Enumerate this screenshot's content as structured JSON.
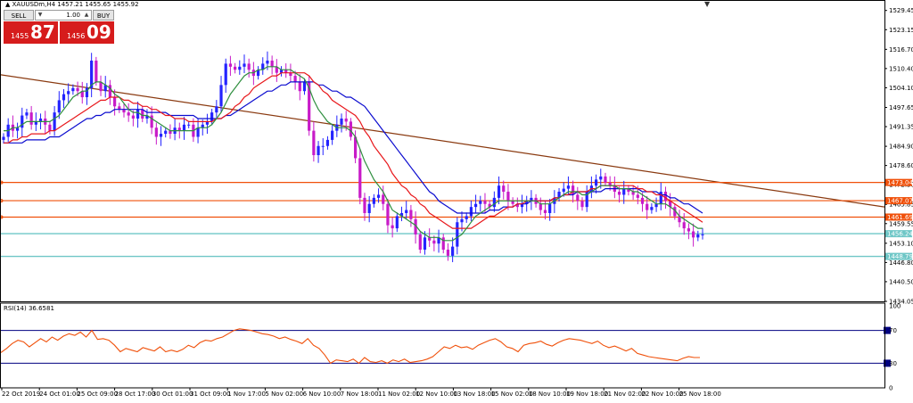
{
  "chart_title": "▲ XAUUSDm,H4  1457.21 1455.65 1455.92",
  "trade_panel": {
    "sell_label": "SELL",
    "buy_label": "BUY",
    "lot": "1.00",
    "sell_price_prefix": "1455",
    "sell_price_big": "87",
    "buy_price_prefix": "1456",
    "buy_price_big": "09",
    "down_arrow": "▼",
    "up_arrow": "▲"
  },
  "colors": {
    "bull": "#2323ff",
    "bear": "#c81bc8",
    "ma_fast": "#2f8f3f",
    "ma_mid": "#e8171b",
    "ma_slow": "#0c0ccf",
    "trend": "#8a3a10",
    "level": "#f0500a",
    "bid": "#6fc7c7",
    "rsi": "#f0500a",
    "rsi_level": "#000080"
  },
  "chart_data": [
    {
      "type": "candlestick",
      "y_ticks": [
        "1529.45",
        "1523.15",
        "1516.70",
        "1510.40",
        "1504.10",
        "1497.65",
        "1491.35",
        "1484.90",
        "1478.60",
        "1472.30",
        "1465.85",
        "1459.55",
        "1453.10",
        "1446.80",
        "1440.50",
        "1434.05"
      ],
      "ylim": [
        1434.05,
        1532.0
      ],
      "x_labels": [
        "22 Oct 2019",
        "24 Oct 01:00",
        "25 Oct 09:00",
        "28 Oct 17:00",
        "30 Oct 01:00",
        "31 Oct 09:00",
        "1 Nov 17:00",
        "5 Nov 02:00",
        "6 Nov 10:00",
        "7 Nov 18:00",
        "11 Nov 02:00",
        "12 Nov 10:00",
        "13 Nov 18:00",
        "15 Nov 02:00",
        "18 Nov 10:00",
        "19 Nov 18:00",
        "21 Nov 02:00",
        "22 Nov 10:00",
        "25 Nov 18:00"
      ],
      "price_levels": [
        {
          "label": "1473.04",
          "value": 1473.04,
          "kind": "level"
        },
        {
          "label": "1467.07",
          "value": 1467.07,
          "kind": "level"
        },
        {
          "label": "1461.69",
          "value": 1461.69,
          "kind": "level"
        },
        {
          "label": "1456.24",
          "value": 1456.24,
          "kind": "bid"
        },
        {
          "label": "1448.79",
          "value": 1448.79,
          "kind": "bid"
        }
      ],
      "trendline": {
        "start": 1508.4,
        "end": 1465.0
      },
      "closes": [
        1488,
        1492,
        1490,
        1491,
        1495,
        1496,
        1492,
        1493,
        1494,
        1492,
        1490,
        1496,
        1500,
        1502,
        1503,
        1504,
        1503,
        1501,
        1504,
        1513,
        1506,
        1503,
        1505,
        1501,
        1498,
        1497,
        1496,
        1495,
        1494,
        1497,
        1494,
        1495,
        1491,
        1488,
        1489,
        1490,
        1489,
        1491,
        1490,
        1492,
        1492,
        1488,
        1491,
        1492,
        1493,
        1496,
        1498,
        1505,
        1512,
        1511,
        1510,
        1511,
        1512,
        1510,
        1508,
        1510,
        1512,
        1513,
        1511,
        1509,
        1510,
        1509,
        1508,
        1506,
        1503,
        1506,
        1490,
        1482,
        1485,
        1485,
        1487,
        1490,
        1492,
        1494,
        1493,
        1488,
        1481,
        1468,
        1463,
        1466,
        1468,
        1469,
        1466,
        1459,
        1458,
        1462,
        1463,
        1464,
        1461,
        1456,
        1451,
        1455,
        1454,
        1453,
        1455,
        1451,
        1449,
        1452,
        1460,
        1461,
        1462,
        1465,
        1466,
        1467,
        1466,
        1465,
        1468,
        1472,
        1470,
        1467,
        1466,
        1465,
        1466,
        1467,
        1468,
        1466,
        1464,
        1463,
        1466,
        1468,
        1470,
        1471,
        1472,
        1469,
        1467,
        1465,
        1470,
        1472,
        1474,
        1475,
        1473,
        1472,
        1470,
        1469,
        1471,
        1470,
        1469,
        1468,
        1466,
        1464,
        1465,
        1466,
        1470,
        1467,
        1465,
        1462,
        1460,
        1458,
        1457,
        1455,
        1456,
        1456
      ],
      "ma_fast": [
        1490,
        1490,
        1491,
        1491,
        1492,
        1493,
        1493,
        1493,
        1493,
        1493,
        1493,
        1494,
        1495,
        1497,
        1499,
        1501,
        1502,
        1503,
        1503,
        1505,
        1506,
        1506,
        1505,
        1504,
        1502,
        1501,
        1499,
        1497,
        1496,
        1496,
        1495,
        1495,
        1494,
        1493,
        1492,
        1491,
        1490,
        1490,
        1490,
        1490,
        1490,
        1490,
        1491,
        1491,
        1491,
        1492,
        1494,
        1496,
        1499,
        1502,
        1504,
        1506,
        1508,
        1509,
        1509,
        1510,
        1510,
        1511,
        1511,
        1511,
        1510,
        1510,
        1510,
        1509,
        1508,
        1507,
        1504,
        1500,
        1497,
        1495,
        1493,
        1492,
        1491,
        1491,
        1491,
        1490,
        1488,
        1484,
        1480,
        1477,
        1474,
        1472,
        1470,
        1467,
        1464,
        1463,
        1462,
        1461,
        1460,
        1459,
        1457,
        1456,
        1455,
        1455,
        1455,
        1454,
        1454,
        1454,
        1455,
        1456,
        1458,
        1460,
        1462,
        1463,
        1464,
        1465,
        1466,
        1467,
        1467,
        1467,
        1467,
        1467,
        1467,
        1467,
        1467,
        1467,
        1466,
        1466,
        1466,
        1467,
        1468,
        1469,
        1470,
        1470,
        1470,
        1469,
        1469,
        1470,
        1471,
        1472,
        1472,
        1472,
        1472,
        1471,
        1471,
        1471,
        1470,
        1470,
        1469,
        1468,
        1467,
        1466,
        1466,
        1466,
        1465,
        1464,
        1462,
        1461,
        1460,
        1459,
        1458,
        1458
      ],
      "ma_mid": [
        1486,
        1486,
        1487,
        1487,
        1488,
        1488,
        1489,
        1489,
        1489,
        1489,
        1490,
        1490,
        1491,
        1492,
        1493,
        1494,
        1495,
        1496,
        1497,
        1498,
        1499,
        1500,
        1500,
        1501,
        1501,
        1501,
        1500,
        1500,
        1499,
        1499,
        1498,
        1498,
        1497,
        1497,
        1496,
        1495,
        1495,
        1494,
        1494,
        1494,
        1493,
        1493,
        1493,
        1493,
        1493,
        1493,
        1494,
        1494,
        1495,
        1496,
        1498,
        1499,
        1501,
        1502,
        1504,
        1505,
        1506,
        1507,
        1508,
        1508,
        1509,
        1509,
        1509,
        1509,
        1509,
        1509,
        1508,
        1506,
        1505,
        1503,
        1502,
        1500,
        1499,
        1498,
        1497,
        1496,
        1495,
        1493,
        1490,
        1488,
        1485,
        1483,
        1481,
        1479,
        1476,
        1474,
        1472,
        1471,
        1469,
        1468,
        1466,
        1465,
        1463,
        1462,
        1461,
        1460,
        1459,
        1458,
        1458,
        1458,
        1458,
        1458,
        1459,
        1460,
        1461,
        1462,
        1462,
        1463,
        1464,
        1465,
        1465,
        1466,
        1466,
        1467,
        1467,
        1467,
        1467,
        1467,
        1467,
        1468,
        1468,
        1469,
        1469,
        1470,
        1470,
        1470,
        1470,
        1471,
        1471,
        1472,
        1472,
        1472,
        1472,
        1472,
        1472,
        1472,
        1472,
        1471,
        1471,
        1470,
        1470,
        1469,
        1469,
        1468,
        1467,
        1466,
        1465,
        1464,
        1463,
        1462,
        1461,
        1460
      ],
      "ma_slow": [
        1486,
        1486,
        1486,
        1486,
        1486,
        1487,
        1487,
        1487,
        1487,
        1487,
        1488,
        1488,
        1488,
        1489,
        1490,
        1491,
        1492,
        1493,
        1494,
        1494,
        1495,
        1495,
        1496,
        1496,
        1497,
        1497,
        1497,
        1497,
        1497,
        1497,
        1497,
        1496,
        1496,
        1496,
        1496,
        1496,
        1495,
        1495,
        1495,
        1495,
        1495,
        1495,
        1494,
        1494,
        1494,
        1494,
        1494,
        1494,
        1495,
        1495,
        1496,
        1497,
        1498,
        1499,
        1500,
        1501,
        1502,
        1503,
        1503,
        1504,
        1505,
        1505,
        1506,
        1506,
        1506,
        1506,
        1506,
        1506,
        1505,
        1505,
        1504,
        1503,
        1503,
        1502,
        1501,
        1501,
        1500,
        1499,
        1498,
        1496,
        1494,
        1492,
        1490,
        1488,
        1486,
        1484,
        1482,
        1480,
        1478,
        1476,
        1474,
        1472,
        1470,
        1469,
        1467,
        1466,
        1465,
        1464,
        1463,
        1463,
        1463,
        1463,
        1463,
        1463,
        1463,
        1464,
        1464,
        1464,
        1465,
        1465,
        1465,
        1466,
        1466,
        1466,
        1467,
        1467,
        1467,
        1467,
        1467,
        1468,
        1468,
        1469,
        1469,
        1469,
        1470,
        1470,
        1470,
        1470,
        1470,
        1470,
        1471,
        1471,
        1471,
        1471,
        1471,
        1471,
        1471,
        1471,
        1470,
        1470,
        1470,
        1470,
        1469,
        1469,
        1468,
        1468,
        1467,
        1466,
        1466,
        1465,
        1464,
        1463
      ]
    },
    {
      "type": "line",
      "title": "RSI(14) 36.6581",
      "y_ticks": [
        "100",
        "70",
        "30",
        "0"
      ],
      "ylim": [
        0,
        100
      ],
      "levels": [
        70,
        30
      ],
      "values": [
        43,
        48,
        54,
        58,
        56,
        50,
        55,
        60,
        56,
        62,
        58,
        63,
        66,
        64,
        68,
        62,
        70,
        59,
        60,
        58,
        52,
        44,
        48,
        46,
        44,
        49,
        47,
        45,
        50,
        44,
        46,
        44,
        47,
        52,
        49,
        55,
        58,
        57,
        60,
        62,
        66,
        70,
        72,
        71,
        70,
        68,
        66,
        65,
        63,
        60,
        62,
        59,
        57,
        54,
        60,
        52,
        48,
        40,
        30,
        34,
        33,
        32,
        35,
        30,
        37,
        32,
        31,
        33,
        30,
        34,
        32,
        35,
        31,
        32,
        33,
        35,
        38,
        44,
        50,
        48,
        52,
        49,
        50,
        47,
        52,
        55,
        58,
        60,
        56,
        50,
        48,
        44,
        52,
        54,
        55,
        57,
        53,
        51,
        55,
        58,
        60,
        59,
        58,
        56,
        54,
        57,
        52,
        49,
        51,
        48,
        45,
        48,
        42,
        40,
        38,
        37,
        36,
        35,
        34,
        33,
        36,
        38,
        37,
        37
      ]
    }
  ]
}
